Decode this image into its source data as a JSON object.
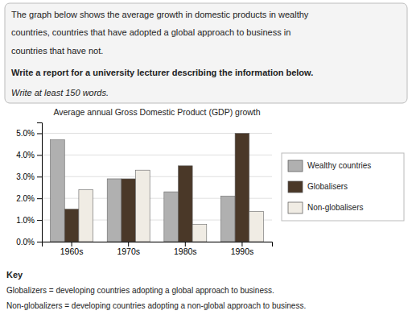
{
  "chart_data": {
    "type": "bar",
    "title": "Average annual Gross Domestic Product (GDP) growth",
    "categories": [
      "1960s",
      "1970s",
      "1980s",
      "1990s"
    ],
    "series": [
      {
        "name": "Wealthy countries",
        "color": "#b0b0b0",
        "values": [
          4.7,
          2.9,
          2.3,
          2.1
        ]
      },
      {
        "name": "Globalisers",
        "color": "#4a3828",
        "values": [
          1.5,
          2.9,
          3.5,
          5.0
        ]
      },
      {
        "name": "Non-globalisers",
        "color": "#f0ece4",
        "values": [
          2.4,
          3.3,
          0.8,
          1.4
        ]
      }
    ],
    "ylim": [
      0,
      5.5
    ],
    "yticks": [
      {
        "value": 0.0,
        "label": "0.0%"
      },
      {
        "value": 1.0,
        "label": "1.0%"
      },
      {
        "value": 2.0,
        "label": "2.0%"
      },
      {
        "value": 3.0,
        "label": "3.0%"
      },
      {
        "value": 4.0,
        "label": "4.0%"
      },
      {
        "value": 5.0,
        "label": "5.0%"
      }
    ],
    "grid": true,
    "legend": "right",
    "annotations": [
      "The graph below shows the average growth in domestic products in wealthy",
      "countries, countries that have adopted a global approach to business in",
      "countries that have not.",
      "Write a report for a university lecturer describing the information below.",
      "Write at least 150 words.",
      "Key",
      "Globalizers = developing countries adopting a global approach to business.",
      "Non-globalizers = developing countries adopting a non-global approach to business."
    ]
  }
}
